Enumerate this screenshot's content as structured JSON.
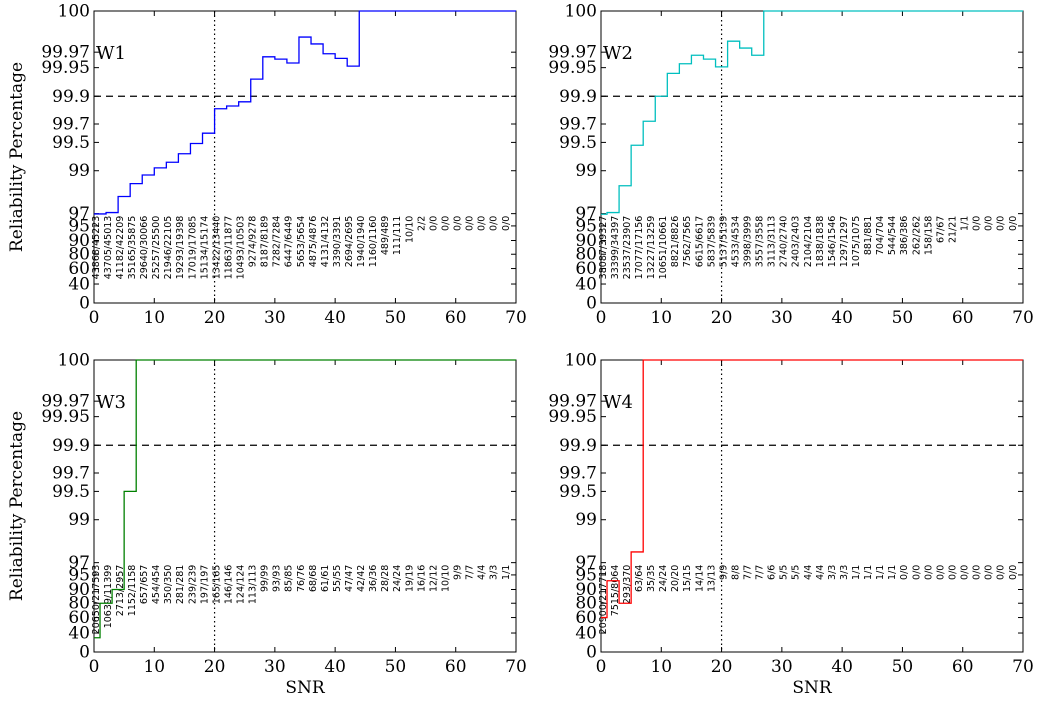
{
  "chart_data": [
    {
      "type": "line",
      "panel": "W1",
      "color": "#0000ff",
      "xlabel": "",
      "ylabel": "Reliability Percentage",
      "xlim": [
        0,
        70
      ],
      "x_ticks": [
        "0",
        "10",
        "20",
        "30",
        "40",
        "50",
        "60",
        "70"
      ],
      "y_ticks": [
        "0",
        "40",
        "60",
        "80",
        "90",
        "95",
        "97",
        "99",
        "99.5",
        "99.7",
        "99.9",
        "99.95",
        "99.97",
        "100"
      ],
      "y_scale": "nonlinear reliability",
      "reference_lines": {
        "y_dashed": 99.9,
        "x_dotted": 20
      },
      "x": [
        0,
        2,
        4,
        6,
        8,
        10,
        12,
        14,
        16,
        18,
        20,
        22,
        24,
        26,
        28,
        30,
        32,
        34,
        36,
        38,
        40,
        42,
        44,
        46,
        48,
        50,
        52,
        54,
        56,
        58,
        60,
        62,
        64,
        66,
        68,
        70
      ],
      "y": [
        96.95,
        97.05,
        97.8,
        98.4,
        98.8,
        99.05,
        99.15,
        99.3,
        99.48,
        99.6,
        99.81,
        99.83,
        99.86,
        99.93,
        99.964,
        99.961,
        99.956,
        99.981,
        99.976,
        99.968,
        99.962,
        99.952,
        100,
        100,
        100,
        100,
        100,
        100,
        100,
        100,
        100,
        100,
        100,
        100,
        100,
        100
      ],
      "counts": [
        "43868/45223",
        "43705/45013",
        "41182/42209",
        "35165/35875",
        "29640/30066",
        "25257/25500",
        "21946/22105",
        "19293/19398",
        "17019/17085",
        "15134/15174",
        "13422/13440",
        "11863/11877",
        "10493/10503",
        "9274/9278",
        "8187/8189",
        "7282/7284",
        "6447/6449",
        "5653/5654",
        "4875/4876",
        "4131/4132",
        "3390/3391",
        "2694/2695",
        "1940/1940",
        "1160/1160",
        "489/489",
        "111/111",
        "10/10",
        "2/2",
        "0/0",
        "0/0",
        "0/0",
        "0/0",
        "0/0",
        "0/0",
        "0/0"
      ]
    },
    {
      "type": "line",
      "panel": "W2",
      "color": "#00bfbf",
      "xlabel": "",
      "ylabel": "",
      "xlim": [
        0,
        70
      ],
      "x_ticks": [
        "0",
        "10",
        "20",
        "30",
        "40",
        "50",
        "60",
        "70"
      ],
      "y_ticks": [
        "0",
        "40",
        "60",
        "80",
        "90",
        "95",
        "97",
        "99",
        "99.5",
        "99.7",
        "99.9",
        "99.95",
        "99.97",
        "100"
      ],
      "reference_lines": {
        "y_dashed": 99.9,
        "x_dotted": 20
      },
      "x": [
        0,
        1,
        3,
        5,
        7,
        9,
        11,
        13,
        15,
        17,
        19,
        21,
        23,
        25,
        27,
        29,
        31,
        33,
        35,
        37,
        39,
        41,
        43,
        45,
        47,
        49,
        51,
        53,
        55,
        57,
        59,
        61,
        63,
        65,
        67,
        70
      ],
      "y": [
        96.9,
        97.05,
        98.3,
        99.45,
        99.72,
        99.9,
        99.94,
        99.955,
        99.966,
        99.961,
        99.951,
        99.978,
        99.973,
        99.966,
        100,
        100,
        100,
        100,
        100,
        100,
        100,
        100,
        100,
        100,
        100,
        100,
        100,
        100,
        100,
        100,
        100,
        100,
        100,
        100,
        100,
        100
      ],
      "counts": [
        "38087/39327",
        "33399/34397",
        "23537/23907",
        "17077/17156",
        "13227/13259",
        "10651/10661",
        "8821/8826",
        "7562/7565",
        "6615/6617",
        "5837/5839",
        "5137/5139",
        "4533/4534",
        "3998/3999",
        "3557/3558",
        "3113/3113",
        "2740/2740",
        "2403/2403",
        "2104/2104",
        "1838/1838",
        "1546/1546",
        "1297/1297",
        "1075/1075",
        "881/881",
        "704/704",
        "544/544",
        "386/386",
        "262/262",
        "158/158",
        "67/67",
        "21/21",
        "1/1",
        "0/0",
        "0/0",
        "0/0",
        "0/0"
      ]
    },
    {
      "type": "line",
      "panel": "W3",
      "color": "#008000",
      "xlabel": "SNR",
      "ylabel": "Reliability Percentage",
      "xlim": [
        0,
        70
      ],
      "x_ticks": [
        "0",
        "10",
        "20",
        "30",
        "40",
        "50",
        "60",
        "70"
      ],
      "y_ticks": [
        "0",
        "40",
        "60",
        "80",
        "90",
        "95",
        "97",
        "99",
        "99.5",
        "99.7",
        "99.9",
        "99.95",
        "99.97",
        "100"
      ],
      "reference_lines": {
        "y_dashed": 99.9,
        "x_dotted": 20
      },
      "x": [
        0,
        1,
        3,
        5,
        7,
        70
      ],
      "y": [
        30,
        80,
        90,
        99.5,
        100,
        100
      ],
      "counts": [
        "20650/217593",
        "10639/11399",
        "2713/2957",
        "1152/1158",
        "657/657",
        "454/454",
        "350/350",
        "281/281",
        "239/239",
        "197/197",
        "165/165",
        "146/146",
        "124/124",
        "113/113",
        "99/99",
        "93/93",
        "85/85",
        "76/76",
        "68/68",
        "61/61",
        "55/55",
        "47/47",
        "42/42",
        "36/36",
        "28/28",
        "24/24",
        "19/19",
        "16/16",
        "12/12",
        "10/10",
        "9/9",
        "7/7",
        "4/4",
        "3/3",
        "1/1"
      ]
    },
    {
      "type": "line",
      "panel": "W4",
      "color": "#ff0000",
      "xlabel": "SNR",
      "ylabel": "",
      "xlim": [
        0,
        70
      ],
      "x_ticks": [
        "0",
        "10",
        "20",
        "30",
        "40",
        "50",
        "60",
        "70"
      ],
      "y_ticks": [
        "0",
        "40",
        "60",
        "80",
        "90",
        "95",
        "97",
        "99",
        "99.5",
        "99.7",
        "99.9",
        "99.95",
        "99.97",
        "100"
      ],
      "reference_lines": {
        "y_dashed": 99.9,
        "x_dotted": 20
      },
      "x": [
        0,
        1,
        3,
        5,
        7,
        70
      ],
      "y": [
        60,
        93,
        80,
        97.5,
        100,
        100
      ],
      "counts": [
        "20900/217718",
        "7515/8064",
        "293/370",
        "63/64",
        "35/35",
        "24/24",
        "20/20",
        "15/15",
        "14/14",
        "13/13",
        "9/9",
        "8/8",
        "7/7",
        "7/7",
        "6/6",
        "5/5",
        "5/5",
        "4/4",
        "4/4",
        "3/3",
        "3/3",
        "1/1",
        "1/1",
        "1/1",
        "1/1",
        "0/0",
        "0/0",
        "0/0",
        "0/0",
        "0/0",
        "0/0",
        "0/0",
        "0/0",
        "0/0",
        "0/0"
      ]
    }
  ]
}
